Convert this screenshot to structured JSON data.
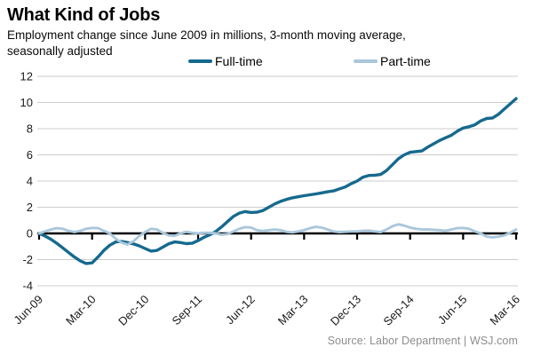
{
  "header": {
    "title": "What Kind of Jobs",
    "subtitle_lines": [
      "Employment change since June 2009 in millions, 3-month moving average,",
      "seasonally adjusted"
    ]
  },
  "source": "Source: Labor Department  |  WSJ.com",
  "colors": {
    "full_time": "#16698e",
    "part_time": "#aac7db",
    "gridline": "#cccccc",
    "zero_axis": "#000000",
    "axis_label": "#1a1a1a",
    "source_text": "#8d8d8d"
  },
  "chart_data": {
    "type": "line",
    "title": "What Kind of Jobs",
    "subtitle": "Employment change since June 2009 in millions, 3-month moving average, seasonally adjusted",
    "xlabel": "",
    "ylabel": "Employment change since June 2009, millions",
    "x_unit": "monthly, Jun-2009 through Mar-2016",
    "x_tick_labels": [
      "Jun-09",
      "Mar-10",
      "Dec-10",
      "Sep-11",
      "Jun-12",
      "Mar-13",
      "Dec-13",
      "Sep-14",
      "Jun-15",
      "Mar-16"
    ],
    "x_tick_every_months": 9,
    "y_ticks": [
      12,
      10,
      8,
      6,
      4,
      2,
      0,
      -2,
      -4
    ],
    "ylim": [
      -4,
      12
    ],
    "grid": true,
    "legend_position": "top",
    "zero_baseline": true,
    "series": [
      {
        "name": "Full-time",
        "color": "#16698e",
        "values": [
          0.0,
          -0.2,
          -0.45,
          -0.75,
          -1.1,
          -1.45,
          -1.8,
          -2.1,
          -2.3,
          -2.25,
          -1.8,
          -1.3,
          -0.9,
          -0.65,
          -0.62,
          -0.7,
          -0.8,
          -0.95,
          -1.15,
          -1.35,
          -1.3,
          -1.05,
          -0.8,
          -0.65,
          -0.7,
          -0.78,
          -0.75,
          -0.55,
          -0.3,
          -0.1,
          0.15,
          0.5,
          0.9,
          1.3,
          1.55,
          1.67,
          1.6,
          1.62,
          1.75,
          2.0,
          2.25,
          2.45,
          2.6,
          2.72,
          2.8,
          2.88,
          2.95,
          3.02,
          3.1,
          3.18,
          3.25,
          3.4,
          3.55,
          3.8,
          4.0,
          4.3,
          4.43,
          4.45,
          4.5,
          4.8,
          5.25,
          5.7,
          6.0,
          6.2,
          6.25,
          6.3,
          6.6,
          6.85,
          7.1,
          7.3,
          7.5,
          7.8,
          8.05,
          8.15,
          8.3,
          8.6,
          8.78,
          8.82,
          9.1,
          9.5,
          9.9,
          10.3
        ]
      },
      {
        "name": "Part-time",
        "color": "#aac7db",
        "values": [
          0.0,
          0.15,
          0.3,
          0.4,
          0.35,
          0.2,
          0.1,
          0.2,
          0.35,
          0.42,
          0.4,
          0.2,
          0.0,
          -0.4,
          -0.7,
          -0.85,
          -0.6,
          -0.2,
          0.1,
          0.35,
          0.3,
          0.05,
          -0.15,
          -0.18,
          0.0,
          0.12,
          0.05,
          0.0,
          0.05,
          0.05,
          0.0,
          -0.1,
          -0.05,
          0.15,
          0.35,
          0.48,
          0.45,
          0.25,
          0.18,
          0.25,
          0.3,
          0.25,
          0.12,
          0.08,
          0.15,
          0.25,
          0.4,
          0.5,
          0.45,
          0.3,
          0.15,
          0.1,
          0.12,
          0.15,
          0.15,
          0.2,
          0.22,
          0.15,
          0.1,
          0.3,
          0.55,
          0.7,
          0.6,
          0.45,
          0.35,
          0.3,
          0.3,
          0.28,
          0.25,
          0.2,
          0.3,
          0.4,
          0.42,
          0.35,
          0.15,
          0.0,
          -0.25,
          -0.3,
          -0.25,
          -0.15,
          0.05,
          0.3
        ]
      }
    ]
  }
}
